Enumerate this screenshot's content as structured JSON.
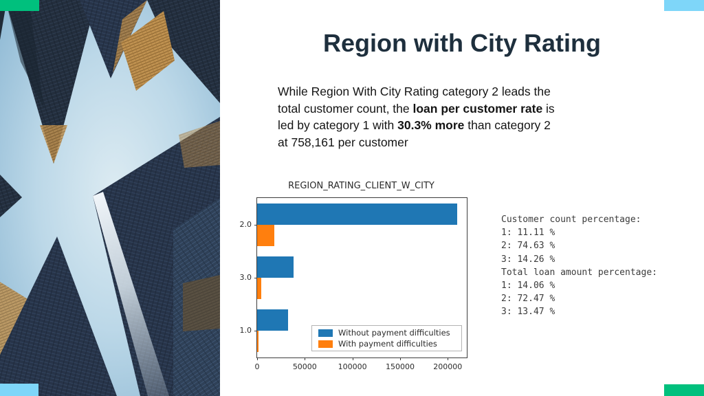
{
  "slide": {
    "title": "Region with City Rating",
    "title_color": "#1e2f3d",
    "accent_green": "#00c07d",
    "accent_blue": "#7ed6f9",
    "photo_name": "skyscrapers-worms-eye-view",
    "body_lines": [
      [
        {
          "t": "While Region With City Rating category 2 leads the",
          "b": false
        }
      ],
      [
        {
          "t": "total customer count, the ",
          "b": false
        },
        {
          "t": "loan per customer rate",
          "b": true
        },
        {
          "t": " is",
          "b": false
        }
      ],
      [
        {
          "t": "led by category 1 with ",
          "b": false
        },
        {
          "t": "30.3% more",
          "b": true
        },
        {
          "t": " than category 2",
          "b": false
        }
      ],
      [
        {
          "t": "at 758,161 per customer",
          "b": false
        }
      ]
    ]
  },
  "chart_data": {
    "type": "bar",
    "orientation": "horizontal",
    "title": "REGION_RATING_CLIENT_W_CITY",
    "categories": [
      "2.0",
      "3.0",
      "1.0"
    ],
    "series": [
      {
        "name": "Without payment difficulties",
        "color": "#1f77b4",
        "values": [
          210000,
          38000,
          32500
        ]
      },
      {
        "name": "With payment difficulties",
        "color": "#ff7f0e",
        "values": [
          18000,
          4500,
          1200
        ]
      }
    ],
    "x_ticks": [
      0,
      50000,
      100000,
      150000,
      200000
    ],
    "xlim": [
      0,
      220000
    ],
    "xlabel": "",
    "ylabel": "",
    "grid": false,
    "legend_position": "lower right"
  },
  "stats": {
    "lines": [
      "Customer count percentage:",
      "1: 11.11 %",
      "2: 74.63 %",
      "3: 14.26 %",
      "Total loan amount percentage:",
      "1: 14.06 %",
      "2: 72.47 %",
      "3: 13.47 %"
    ]
  }
}
